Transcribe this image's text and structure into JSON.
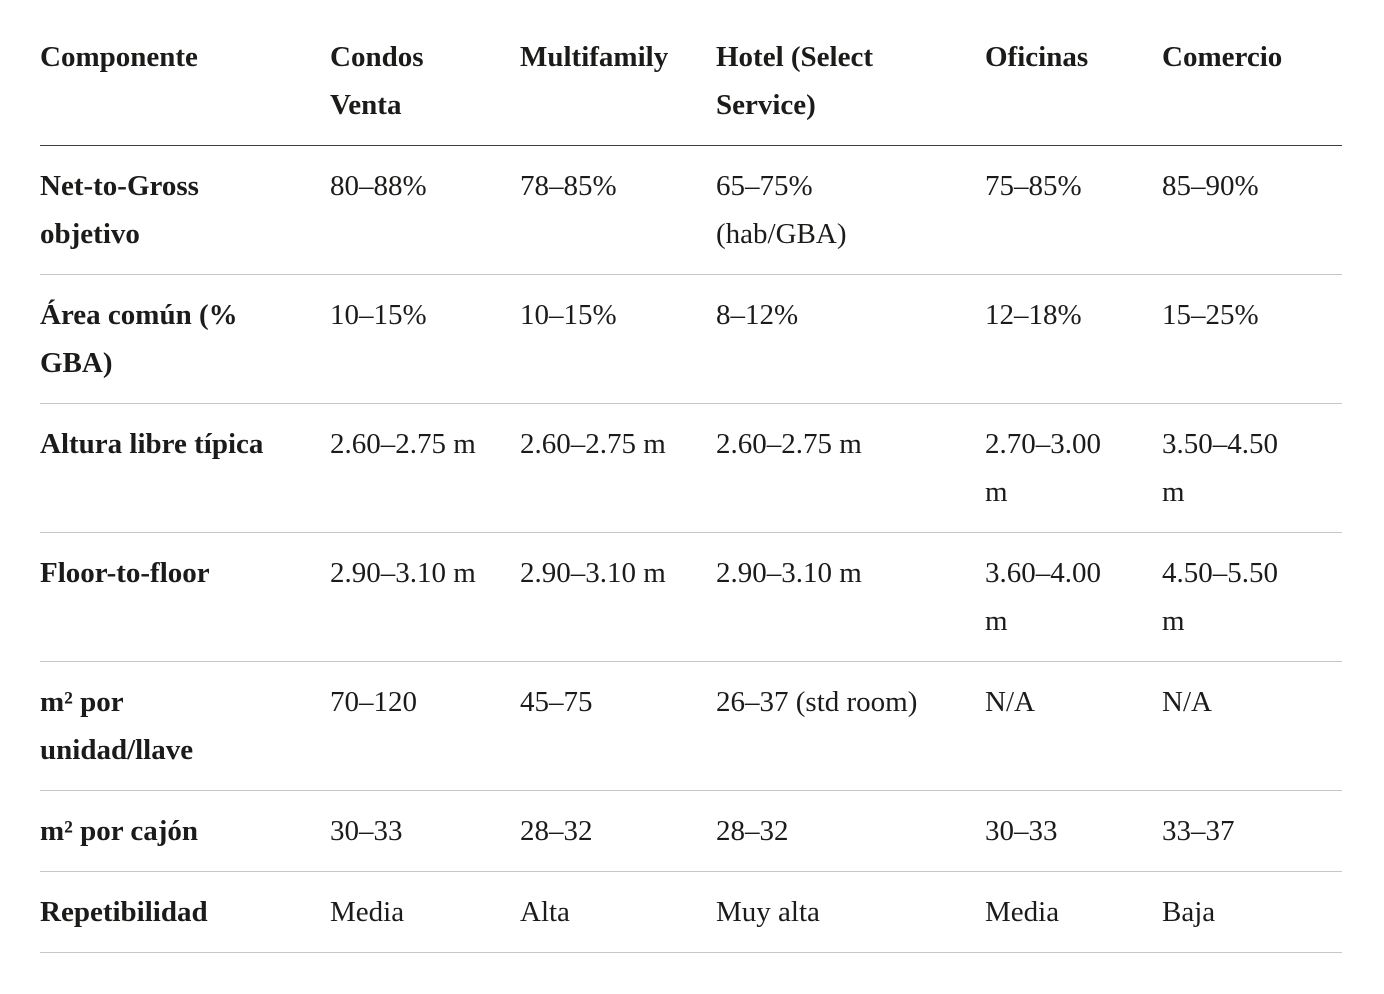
{
  "table": {
    "columns": [
      "Componente",
      "Condos Venta",
      "Multifamily",
      "Hotel (Select Service)",
      "Oficinas",
      "Comercio"
    ],
    "rows": [
      {
        "label": "Net-to-Gross objetivo",
        "values": [
          "80–88%",
          "78–85%",
          "65–75% (hab/GBA)",
          "75–85%",
          "85–90%"
        ]
      },
      {
        "label": "Área común (% GBA)",
        "values": [
          "10–15%",
          "10–15%",
          "8–12%",
          "12–18%",
          "15–25%"
        ]
      },
      {
        "label": "Altura libre típica",
        "values": [
          "2.60–2.75 m",
          "2.60–2.75 m",
          "2.60–2.75 m",
          "2.70–3.00 m",
          "3.50–4.50 m"
        ]
      },
      {
        "label": "Floor-to-floor",
        "values": [
          "2.90–3.10 m",
          "2.90–3.10 m",
          "2.90–3.10 m",
          "3.60–4.00 m",
          "4.50–5.50 m"
        ]
      },
      {
        "label": "m² por unidad/llave",
        "values": [
          "70–120",
          "45–75",
          "26–37 (std room)",
          "N/A",
          "N/A"
        ]
      },
      {
        "label": "m² por cajón",
        "values": [
          "30–33",
          "28–32",
          "28–32",
          "30–33",
          "33–37"
        ]
      },
      {
        "label": "Repetibilidad",
        "values": [
          "Media",
          "Alta",
          "Muy alta",
          "Media",
          "Baja"
        ]
      }
    ]
  },
  "colors": {
    "text": "#1b1b19",
    "header_rule": "#3f3e3a",
    "row_rule": "#c7c6c1",
    "background": "#ffffff"
  }
}
